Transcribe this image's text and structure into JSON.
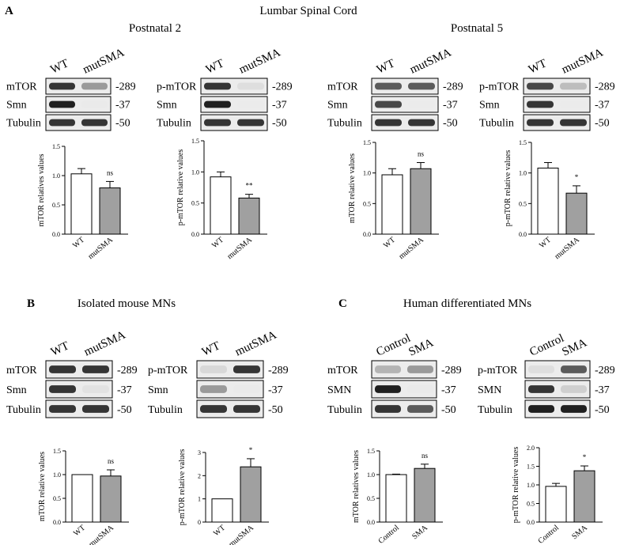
{
  "figure": {
    "panel_a": {
      "letter": "A",
      "title": "Lumbar Spinal Cord",
      "groups": [
        {
          "subtitle": "Postnatal 2",
          "blots": [
            {
              "lanes": [
                "WT",
                "mutSMA"
              ],
              "rows": [
                {
                  "label": "mTOR",
                  "kda": "-289",
                  "intensity": [
                    0.9,
                    0.6
                  ]
                },
                {
                  "label": "Smn",
                  "kda": "-37",
                  "intensity": [
                    0.95,
                    0.08
                  ]
                },
                {
                  "label": "Tubulin",
                  "kda": "-50",
                  "intensity": [
                    0.9,
                    0.9
                  ]
                }
              ]
            },
            {
              "lanes": [
                "WT",
                "mutSMA"
              ],
              "rows": [
                {
                  "label": "p-mTOR",
                  "kda": "-289",
                  "intensity": [
                    0.9,
                    0.25
                  ]
                },
                {
                  "label": "Smn",
                  "kda": "-37",
                  "intensity": [
                    0.95,
                    0.05
                  ]
                },
                {
                  "label": "Tubulin",
                  "kda": "-50",
                  "intensity": [
                    0.9,
                    0.9
                  ]
                }
              ]
            }
          ]
        },
        {
          "subtitle": "Postnatal 5",
          "blots": [
            {
              "lanes": [
                "WT",
                "mutSMA"
              ],
              "rows": [
                {
                  "label": "mTOR",
                  "kda": "-289",
                  "intensity": [
                    0.8,
                    0.8
                  ]
                },
                {
                  "label": "Smn",
                  "kda": "-37",
                  "intensity": [
                    0.85,
                    0.05
                  ]
                },
                {
                  "label": "Tubulin",
                  "kda": "-50",
                  "intensity": [
                    0.9,
                    0.9
                  ]
                }
              ]
            },
            {
              "lanes": [
                "WT",
                "mutSMA"
              ],
              "rows": [
                {
                  "label": "p-mTOR",
                  "kda": "-289",
                  "intensity": [
                    0.85,
                    0.45
                  ]
                },
                {
                  "label": "Smn",
                  "kda": "-37",
                  "intensity": [
                    0.9,
                    0.05
                  ]
                },
                {
                  "label": "Tubulin",
                  "kda": "-50",
                  "intensity": [
                    0.9,
                    0.9
                  ]
                }
              ]
            }
          ]
        }
      ]
    },
    "panel_b": {
      "letter": "B",
      "title": "Isolated mouse MNs",
      "blots": [
        {
          "lanes": [
            "WT",
            "mutSMA"
          ],
          "rows": [
            {
              "label": "mTOR",
              "kda": "-289",
              "intensity": [
                0.9,
                0.9
              ]
            },
            {
              "label": "Smn",
              "kda": "-37",
              "intensity": [
                0.9,
                0.2
              ]
            },
            {
              "label": "Tubulin",
              "kda": "-50",
              "intensity": [
                0.9,
                0.9
              ]
            }
          ]
        },
        {
          "lanes": [
            "WT",
            "mutSMA"
          ],
          "rows": [
            {
              "label": "p-mTOR",
              "kda": "-289",
              "intensity": [
                0.3,
                0.9
              ]
            },
            {
              "label": "Smn",
              "kda": "-37",
              "intensity": [
                0.6,
                0.1
              ]
            },
            {
              "label": "Tubulin",
              "kda": "-50",
              "intensity": [
                0.9,
                0.9
              ]
            }
          ]
        }
      ]
    },
    "panel_c": {
      "letter": "C",
      "title": "Human differentiated MNs",
      "blots": [
        {
          "lanes": [
            "Control",
            "SMA"
          ],
          "rows": [
            {
              "label": "mTOR",
              "kda": "-289",
              "intensity": [
                0.5,
                0.6
              ]
            },
            {
              "label": "SMN",
              "kda": "-37",
              "intensity": [
                0.95,
                0.1
              ]
            },
            {
              "label": "Tubulin",
              "kda": "-50",
              "intensity": [
                0.9,
                0.8
              ]
            }
          ]
        },
        {
          "lanes": [
            "Control",
            "SMA"
          ],
          "rows": [
            {
              "label": "p-mTOR",
              "kda": "-289",
              "intensity": [
                0.25,
                0.8
              ]
            },
            {
              "label": "SMN",
              "kda": "-37",
              "intensity": [
                0.9,
                0.35
              ]
            },
            {
              "label": "Tubulin",
              "kda": "-50",
              "intensity": [
                0.95,
                0.95
              ]
            }
          ]
        }
      ]
    }
  },
  "chart_data": [
    {
      "type": "bar",
      "panel": "A",
      "group": "Postnatal 2",
      "categories": [
        "WT",
        "mutSMA"
      ],
      "values": [
        1.03,
        0.79
      ],
      "errors": [
        0.09,
        0.11
      ],
      "ylabel": "mTOR relatives values",
      "ylim": [
        0,
        1.5
      ],
      "yticks": [
        "0.0",
        "0.5",
        "1.0",
        "1.5"
      ],
      "significance": "ns",
      "colors": [
        "#ffffff",
        "#a0a0a0"
      ]
    },
    {
      "type": "bar",
      "panel": "A",
      "group": "Postnatal 2",
      "categories": [
        "WT",
        "mutSMA"
      ],
      "values": [
        0.92,
        0.58
      ],
      "errors": [
        0.08,
        0.06
      ],
      "ylabel": "p-mTOR relative values",
      "ylim": [
        0,
        1.5
      ],
      "yticks": [
        "0.0",
        "0.5",
        "1.0",
        "1.5"
      ],
      "significance": "**",
      "colors": [
        "#ffffff",
        "#a0a0a0"
      ]
    },
    {
      "type": "bar",
      "panel": "A",
      "group": "Postnatal 5",
      "categories": [
        "WT",
        "mutSMA"
      ],
      "values": [
        0.97,
        1.07
      ],
      "errors": [
        0.1,
        0.1
      ],
      "ylabel": "mTOR relative values",
      "ylim": [
        0,
        1.5
      ],
      "yticks": [
        "0.0",
        "0.5",
        "1.0",
        "1.5"
      ],
      "significance": "ns",
      "colors": [
        "#ffffff",
        "#a0a0a0"
      ]
    },
    {
      "type": "bar",
      "panel": "A",
      "group": "Postnatal 5",
      "categories": [
        "WT",
        "mutSMA"
      ],
      "values": [
        1.08,
        0.67
      ],
      "errors": [
        0.09,
        0.12
      ],
      "ylabel": "p-mTOR relative values",
      "ylim": [
        0,
        1.5
      ],
      "yticks": [
        "0.0",
        "0.5",
        "1.0",
        "1.5"
      ],
      "significance": "*",
      "colors": [
        "#ffffff",
        "#a0a0a0"
      ]
    },
    {
      "type": "bar",
      "panel": "B",
      "categories": [
        "WT",
        "mutSMA"
      ],
      "values": [
        1.0,
        0.97
      ],
      "errors": [
        0.0,
        0.13
      ],
      "ylabel": "mTOR relative values",
      "ylim": [
        0,
        1.5
      ],
      "yticks": [
        "0.0",
        "0.5",
        "1.0",
        "1.5"
      ],
      "significance": "ns",
      "colors": [
        "#ffffff",
        "#a0a0a0"
      ]
    },
    {
      "type": "bar",
      "panel": "B",
      "categories": [
        "WT",
        "mutSMA"
      ],
      "values": [
        1.0,
        2.38
      ],
      "errors": [
        0.0,
        0.35
      ],
      "ylabel": "p-mTOR relative values",
      "ylim": [
        0,
        3
      ],
      "yticks": [
        "0",
        "1",
        "2",
        "3"
      ],
      "significance": "*",
      "colors": [
        "#ffffff",
        "#a0a0a0"
      ]
    },
    {
      "type": "bar",
      "panel": "C",
      "categories": [
        "Control",
        "SMA"
      ],
      "values": [
        1.0,
        1.13
      ],
      "errors": [
        0.01,
        0.09
      ],
      "ylabel": "mTOR relatives values",
      "ylim": [
        0,
        1.5
      ],
      "yticks": [
        "0.0",
        "0.5",
        "1.0",
        "1.5"
      ],
      "significance": "ns",
      "colors": [
        "#ffffff",
        "#a0a0a0"
      ]
    },
    {
      "type": "bar",
      "panel": "C",
      "categories": [
        "Control",
        "SMA"
      ],
      "values": [
        0.96,
        1.38
      ],
      "errors": [
        0.08,
        0.13
      ],
      "ylabel": "p-mTOR relative values",
      "ylim": [
        0,
        2.0
      ],
      "yticks": [
        "0.0",
        "0.5",
        "1.0",
        "1.5",
        "2.0"
      ],
      "significance": "*",
      "colors": [
        "#ffffff",
        "#a0a0a0"
      ]
    }
  ]
}
